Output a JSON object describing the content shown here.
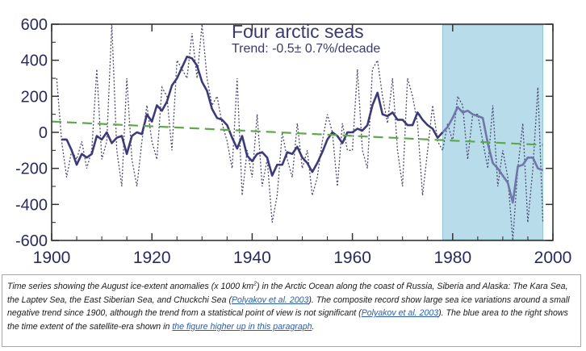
{
  "chart_data": {
    "type": "line",
    "title": "Four arctic seas",
    "subtitle": "Trend: -0.5± 0.7%/decade",
    "xlabel": "",
    "ylabel": "",
    "xlim": [
      1900,
      2000
    ],
    "ylim": [
      -600,
      600
    ],
    "x_ticks": [
      "1900",
      "1920",
      "1940",
      "1960",
      "1980",
      "2000"
    ],
    "y_ticks": [
      "600",
      "400",
      "200",
      "0",
      "-200",
      "-400",
      "-600"
    ],
    "grid": false,
    "legend": "none",
    "highlight_region": {
      "x": [
        1978,
        1998
      ],
      "color": "#b9dcea"
    },
    "colors": {
      "smoothed": "#3c3a78",
      "smoothed_shaded": "#6f76a8",
      "annual": "#4a4a72",
      "trend": "#5ea84a",
      "axis": "#333333"
    },
    "series": [
      {
        "style": "dotted",
        "x": [
          1901,
          1902,
          1903,
          1904,
          1905,
          1906,
          1907,
          1908,
          1909,
          1910,
          1911,
          1912,
          1913,
          1914,
          1915,
          1916,
          1917,
          1918,
          1919,
          1920,
          1921,
          1922,
          1923,
          1924,
          1925,
          1926,
          1927,
          1928,
          1929,
          1930,
          1931,
          1932,
          1933,
          1934,
          1935,
          1936,
          1937,
          1938,
          1939,
          1940,
          1941,
          1942,
          1943,
          1944,
          1945,
          1946,
          1947,
          1948,
          1949,
          1950,
          1951,
          1952,
          1953,
          1954,
          1955,
          1956,
          1957,
          1958,
          1959,
          1960,
          1961,
          1962,
          1963,
          1964,
          1965,
          1966,
          1967,
          1968,
          1969,
          1970,
          1971,
          1972,
          1973,
          1974,
          1975,
          1976,
          1977,
          1978,
          1979,
          1980,
          1981,
          1982,
          1983,
          1984,
          1985,
          1986,
          1987,
          1988,
          1989,
          1990,
          1991,
          1992,
          1993,
          1994,
          1995,
          1996,
          1997,
          1998
        ],
        "values": [
          300,
          -50,
          -250,
          -100,
          -150,
          -50,
          -200,
          -100,
          350,
          -150,
          -50,
          600,
          -100,
          -300,
          300,
          -150,
          -300,
          -50,
          150,
          -50,
          -150,
          250,
          200,
          -100,
          400,
          350,
          300,
          550,
          300,
          600,
          300,
          150,
          200,
          50,
          -50,
          -200,
          300,
          -350,
          -100,
          -250,
          100,
          -300,
          -150,
          -500,
          -350,
          0,
          -150,
          -250,
          50,
          -200,
          -100,
          -350,
          -250,
          -50,
          100,
          0,
          -300,
          50,
          -100,
          -100,
          350,
          -100,
          -200,
          350,
          400,
          200,
          50,
          300,
          -100,
          -300,
          300,
          200,
          50,
          -350,
          -100,
          150,
          -50,
          -100,
          50,
          -50,
          200,
          150,
          -150,
          100,
          100,
          -50,
          -200,
          150,
          -300,
          -100,
          -250,
          -600,
          -200,
          50,
          -500,
          -200,
          250,
          -500
        ]
      },
      {
        "style": "solid",
        "x": [
          1902,
          1903,
          1904,
          1905,
          1906,
          1907,
          1908,
          1909,
          1910,
          1911,
          1912,
          1913,
          1914,
          1915,
          1916,
          1917,
          1918,
          1919,
          1920,
          1921,
          1922,
          1923,
          1924,
          1925,
          1926,
          1927,
          1928,
          1929,
          1930,
          1931,
          1932,
          1933,
          1934,
          1935,
          1936,
          1937,
          1938,
          1939,
          1940,
          1941,
          1942,
          1943,
          1944,
          1945,
          1946,
          1947,
          1948,
          1949,
          1950,
          1951,
          1952,
          1953,
          1954,
          1955,
          1956,
          1957,
          1958,
          1959,
          1960,
          1961,
          1962,
          1963,
          1964,
          1965,
          1966,
          1967,
          1968,
          1969,
          1970,
          1971,
          1972,
          1973,
          1974,
          1975,
          1976,
          1977,
          1978,
          1979,
          1980,
          1981,
          1982,
          1983,
          1984,
          1985,
          1986,
          1987,
          1988,
          1989,
          1990,
          1991,
          1992,
          1993,
          1994,
          1995,
          1996,
          1997,
          1998
        ],
        "values": [
          -40,
          -40,
          -100,
          -180,
          -120,
          -140,
          -120,
          -20,
          -40,
          0,
          -60,
          -30,
          -20,
          -120,
          -20,
          0,
          -10,
          100,
          60,
          150,
          120,
          170,
          260,
          300,
          360,
          420,
          410,
          370,
          280,
          230,
          130,
          80,
          70,
          40,
          -30,
          -90,
          -20,
          -130,
          -160,
          -120,
          -110,
          -140,
          -240,
          -180,
          -180,
          -110,
          -120,
          -80,
          -140,
          -170,
          -220,
          -170,
          -110,
          -40,
          0,
          -20,
          -60,
          0,
          0,
          20,
          10,
          40,
          150,
          220,
          100,
          90,
          110,
          70,
          70,
          40,
          40,
          110,
          70,
          40,
          20,
          -30,
          0,
          30,
          80,
          140,
          110,
          120,
          100,
          90,
          80,
          -60,
          -170,
          -200,
          -240,
          -280,
          -390,
          -190,
          -180,
          -140,
          -140,
          -200,
          -210
        ]
      },
      {
        "style": "dashed",
        "x": [
          1900,
          1998
        ],
        "values": [
          60,
          -70
        ]
      }
    ]
  },
  "caption": {
    "t1": "Time series showing the August ice-extent anomalies (x 1000 km",
    "sup": "2",
    "t2": ") in the Arctic Ocean along the coast of Russia, Siberia and Alaska: The Kara Sea, the Laptev Sea, the East Siberian Sea, and Chuckchi Sea (",
    "link1": "Polyakov et al. 2003",
    "t3": "). The composite record show large sea ice variations around a small negative trend since 1900, although the trend from a statistical point of view is not significant (",
    "link2": "Polyakov et al. 2003",
    "t4": "). The blue area to the right shows the time extent of the satellite-era shown in ",
    "link3": "the figure higher up in this paragraph",
    "t5": "."
  }
}
